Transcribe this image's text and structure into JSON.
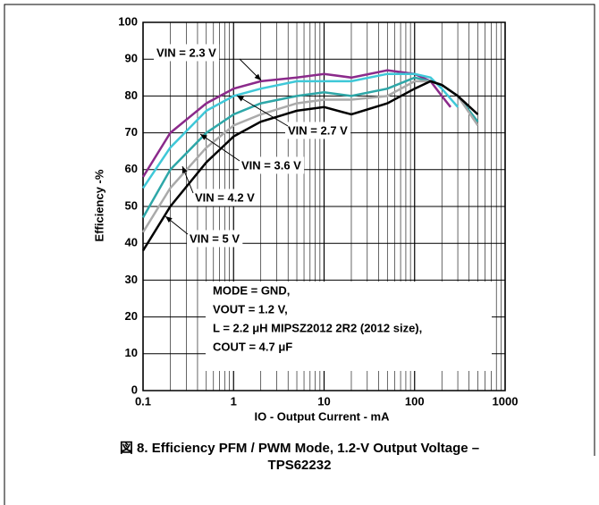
{
  "chart_data": {
    "type": "line",
    "xlabel": "IO - Output Current - mA",
    "ylabel": "Efficiency -%",
    "xscale": "log",
    "xlim": [
      0.1,
      1000
    ],
    "xticks": [
      0.1,
      1,
      10,
      100,
      1000
    ],
    "ylim": [
      0,
      100
    ],
    "yticks": [
      0,
      10,
      20,
      30,
      40,
      50,
      60,
      70,
      80,
      90,
      100
    ],
    "grid": true,
    "series": [
      {
        "name": "VIN = 2.3 V",
        "color": "#8b2a8b",
        "x": [
          0.1,
          0.2,
          0.5,
          1,
          2,
          5,
          10,
          20,
          50,
          100,
          150,
          200,
          250
        ],
        "values": [
          58,
          70,
          78,
          82,
          84,
          85,
          86,
          85,
          87,
          86,
          84,
          80,
          77
        ]
      },
      {
        "name": "VIN = 2.7 V",
        "color": "#3fc8d8",
        "x": [
          0.1,
          0.2,
          0.5,
          1,
          2,
          5,
          10,
          20,
          50,
          100,
          150,
          200,
          300
        ],
        "values": [
          55,
          66,
          76,
          80,
          82,
          84,
          84,
          84,
          86,
          86,
          85,
          82,
          77
        ]
      },
      {
        "name": "VIN = 3.6 V",
        "color": "#2ea7a8",
        "x": [
          0.1,
          0.2,
          0.5,
          1,
          2,
          5,
          10,
          20,
          50,
          100,
          150,
          200,
          300,
          500
        ],
        "values": [
          47,
          60,
          70,
          75,
          78,
          80,
          81,
          80,
          82,
          85,
          84,
          83,
          80,
          73
        ]
      },
      {
        "name": "VIN = 4.2 V",
        "color": "#aaaaaa",
        "x": [
          0.1,
          0.2,
          0.5,
          1,
          2,
          5,
          10,
          20,
          50,
          100,
          150,
          200,
          300,
          500
        ],
        "values": [
          43,
          55,
          66,
          72,
          75,
          78,
          79,
          79,
          80,
          84,
          84,
          83,
          80,
          72
        ]
      },
      {
        "name": "VIN = 5 V",
        "color": "#000000",
        "x": [
          0.1,
          0.2,
          0.5,
          1,
          2,
          5,
          10,
          20,
          50,
          100,
          150,
          200,
          300,
          500
        ],
        "values": [
          38,
          50,
          62,
          69,
          73,
          76,
          77,
          75,
          78,
          82,
          84,
          83,
          80,
          75
        ]
      }
    ],
    "annotation": [
      "MODE = GND,",
      "VOUT = 1.2 V,",
      "L = 2.2 μH MIPSZ2012 2R2 (2012 size),",
      "COUT = 4.7 μF"
    ],
    "caption": [
      "図 8. Efficiency PFM / PWM Mode, 1.2-V Output Voltage –",
      "TPS62232"
    ]
  }
}
